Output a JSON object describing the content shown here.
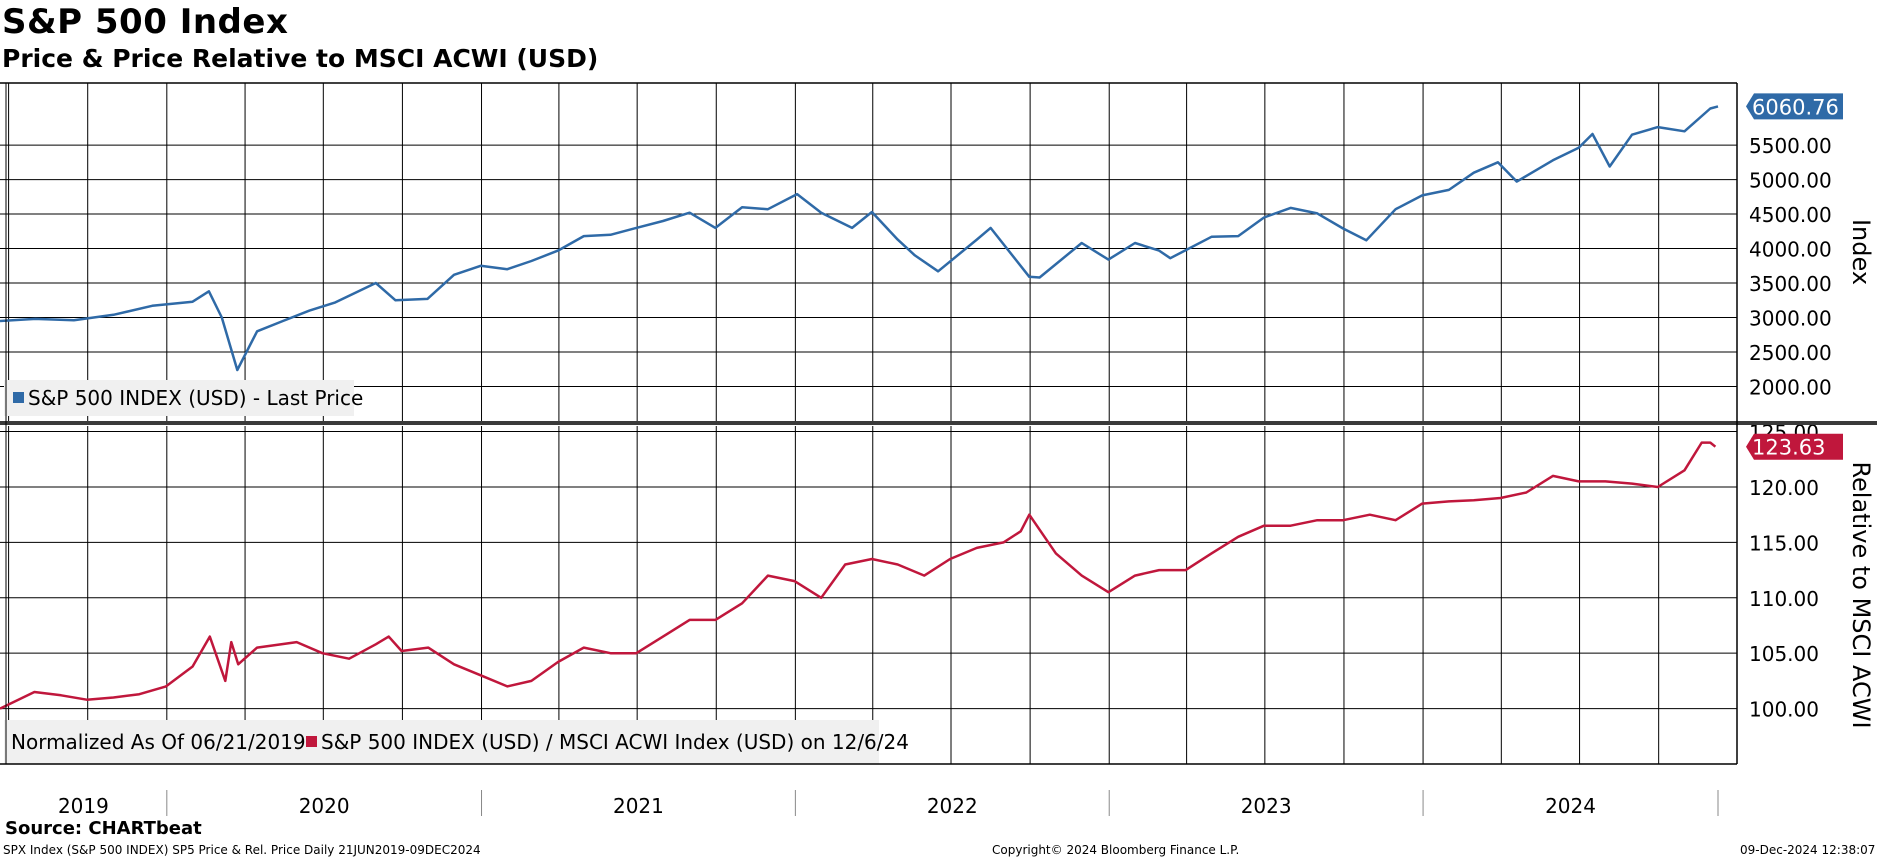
{
  "title": "S&P 500 Index",
  "subtitle": "Price & Price Relative to MSCI ACWI (USD)",
  "footer": {
    "source": "Source: CHARTbeat",
    "description": "SPX Index (S&P 500 INDEX) SP5 Price & Rel. Price  Daily 21JUN2019-09DEC2024",
    "copyright": "Copyright© 2024 Bloomberg Finance L.P.",
    "timestamp": "09-Dec-2024 12:38:07"
  },
  "chart_data": [
    {
      "type": "line",
      "ylabel": "Index",
      "ylim": [
        1500,
        6400
      ],
      "yticks": [
        "2000.00",
        "2500.00",
        "3000.00",
        "3500.00",
        "4000.00",
        "4500.00",
        "5000.00",
        "5500.00"
      ],
      "ytick_values": [
        2000,
        2500,
        3000,
        3500,
        4000,
        4500,
        5000,
        5500
      ],
      "last_value_label": "6060.76",
      "last_value": 6060.76,
      "series_color": "#2f6aa7",
      "legend_text": "S&P 500 INDEX (USD) - Last Price",
      "series": [
        {
          "name": "S&P 500 INDEX (USD) - Last Price",
          "x": [
            "2019-06-21",
            "2019-08-01",
            "2019-09-15",
            "2019-10-31",
            "2019-12-15",
            "2020-01-31",
            "2020-02-19",
            "2020-03-05",
            "2020-03-23",
            "2020-04-15",
            "2020-05-15",
            "2020-06-15",
            "2020-07-15",
            "2020-08-31",
            "2020-09-23",
            "2020-10-30",
            "2020-11-30",
            "2020-12-31",
            "2021-01-31",
            "2021-02-28",
            "2021-03-31",
            "2021-04-30",
            "2021-05-31",
            "2021-06-30",
            "2021-07-31",
            "2021-08-31",
            "2021-09-30",
            "2021-10-31",
            "2021-11-30",
            "2022-01-03",
            "2022-01-31",
            "2022-03-08",
            "2022-03-31",
            "2022-04-30",
            "2022-05-20",
            "2022-06-16",
            "2022-07-31",
            "2022-08-16",
            "2022-09-30",
            "2022-10-12",
            "2022-11-30",
            "2022-12-31",
            "2023-01-31",
            "2023-02-28",
            "2023-03-13",
            "2023-04-30",
            "2023-05-31",
            "2023-06-30",
            "2023-07-31",
            "2023-08-31",
            "2023-09-30",
            "2023-10-27",
            "2023-11-30",
            "2023-12-31",
            "2024-01-31",
            "2024-02-29",
            "2024-03-28",
            "2024-04-19",
            "2024-05-31",
            "2024-06-30",
            "2024-07-16",
            "2024-08-05",
            "2024-08-31",
            "2024-09-30",
            "2024-10-31",
            "2024-11-30",
            "2024-12-09"
          ],
          "values": [
            2950,
            2980,
            2960,
            3040,
            3170,
            3230,
            3380,
            3000,
            2240,
            2800,
            2950,
            3100,
            3220,
            3500,
            3250,
            3270,
            3620,
            3750,
            3700,
            3820,
            3970,
            4180,
            4200,
            4300,
            4400,
            4520,
            4300,
            4600,
            4570,
            4790,
            4520,
            4300,
            4530,
            4130,
            3900,
            3670,
            4130,
            4300,
            3590,
            3580,
            4080,
            3840,
            4080,
            3970,
            3860,
            4170,
            4180,
            4450,
            4590,
            4510,
            4290,
            4120,
            4570,
            4770,
            4850,
            5100,
            5250,
            4970,
            5280,
            5460,
            5660,
            5190,
            5650,
            5760,
            5700,
            6030,
            6061
          ]
        }
      ]
    },
    {
      "type": "line",
      "ylabel": "Relative to MSCI ACWI",
      "ylim": [
        95,
        125.5
      ],
      "yticks": [
        "100.00",
        "105.00",
        "110.00",
        "115.00",
        "120.00",
        "125.00"
      ],
      "ytick_values": [
        100,
        105,
        110,
        115,
        120,
        125
      ],
      "last_value_label": "123.63",
      "last_value": 123.63,
      "series_color": "#c0173c",
      "legend_prefix": "Normalized As Of 06/21/2019",
      "legend_text": "S&P 500 INDEX (USD) / MSCI ACWI Index (USD) on 12/6/24",
      "series": [
        {
          "name": "S&P 500 INDEX (USD) / MSCI ACWI Index (USD) on 12/6/24",
          "x": [
            "2019-06-21",
            "2019-07-31",
            "2019-08-31",
            "2019-09-30",
            "2019-10-31",
            "2019-11-30",
            "2019-12-31",
            "2020-01-31",
            "2020-02-20",
            "2020-03-09",
            "2020-03-16",
            "2020-03-24",
            "2020-04-15",
            "2020-05-31",
            "2020-06-30",
            "2020-07-31",
            "2020-08-31",
            "2020-09-15",
            "2020-09-30",
            "2020-10-31",
            "2020-11-30",
            "2020-12-31",
            "2021-01-31",
            "2021-02-28",
            "2021-03-31",
            "2021-04-30",
            "2021-05-31",
            "2021-06-30",
            "2021-07-31",
            "2021-08-31",
            "2021-09-30",
            "2021-10-31",
            "2021-11-30",
            "2021-12-31",
            "2022-01-31",
            "2022-02-28",
            "2022-03-31",
            "2022-04-30",
            "2022-05-31",
            "2022-06-30",
            "2022-07-31",
            "2022-08-31",
            "2022-09-20",
            "2022-09-30",
            "2022-10-31",
            "2022-11-30",
            "2022-12-31",
            "2023-01-31",
            "2023-02-28",
            "2023-03-31",
            "2023-04-30",
            "2023-05-31",
            "2023-06-30",
            "2023-07-31",
            "2023-08-31",
            "2023-09-30",
            "2023-10-31",
            "2023-11-30",
            "2023-12-31",
            "2024-01-31",
            "2024-02-29",
            "2024-03-31",
            "2024-04-30",
            "2024-05-31",
            "2024-06-30",
            "2024-07-31",
            "2024-08-31",
            "2024-09-30",
            "2024-10-31",
            "2024-11-20",
            "2024-11-30",
            "2024-12-06"
          ],
          "values": [
            100,
            101.5,
            101.2,
            100.8,
            101,
            101.3,
            102,
            103.8,
            106.5,
            102.5,
            106,
            104,
            105.5,
            106,
            105,
            104.5,
            105.8,
            106.5,
            105.2,
            105.5,
            104,
            103,
            102,
            102.5,
            104.2,
            105.5,
            105,
            105,
            106.5,
            108,
            108,
            109.5,
            112,
            111.5,
            110,
            113,
            113.5,
            113,
            112,
            113.5,
            114.5,
            115,
            116,
            117.5,
            114,
            112,
            110.5,
            112,
            112.5,
            112.5,
            114,
            115.5,
            116.5,
            116.5,
            117,
            117,
            117.5,
            117,
            118.5,
            118.7,
            118.8,
            119,
            119.5,
            121,
            120.5,
            120.5,
            120.3,
            120,
            121.5,
            124,
            124,
            123.63
          ]
        }
      ]
    }
  ],
  "x_axis": {
    "year_labels": [
      "2019",
      "2020",
      "2021",
      "2022",
      "2023",
      "2024"
    ]
  }
}
